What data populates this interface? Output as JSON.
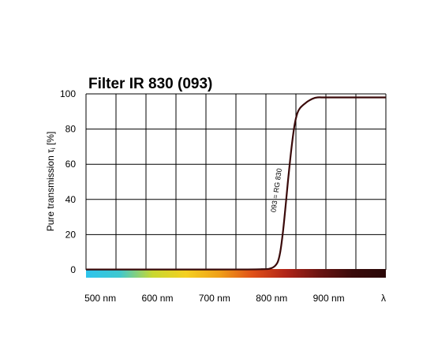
{
  "chart_data": {
    "type": "line",
    "title": "Filter IR 830 (093)",
    "ylabel": "Pure transmission τ",
    "ylabel_sub": "i",
    "ylabel_unit": " [%]",
    "xlabel": "λ",
    "xlim": [
      475,
      1000
    ],
    "ylim": [
      0,
      100
    ],
    "grid": true,
    "y_ticks": [
      "0",
      "20",
      "40",
      "60",
      "80",
      "100"
    ],
    "x_ticks": [
      {
        "value": 500,
        "label": "500 nm"
      },
      {
        "value": 600,
        "label": "600 nm"
      },
      {
        "value": 700,
        "label": "700 nm"
      },
      {
        "value": 800,
        "label": "800 nm"
      },
      {
        "value": 900,
        "label": "900 nm"
      }
    ],
    "annotation": "093 = RG 830",
    "spectrum_colors": [
      "#2ec4ec",
      "#3ec8d0",
      "#c8d830",
      "#f4d020",
      "#f0a018",
      "#e05018",
      "#b02418",
      "#6a1412",
      "#3a0b0b",
      "#2a0808"
    ],
    "line_color": "#3a0a0a",
    "series": [
      {
        "x": [
          475,
          700,
          780,
          800,
          810,
          815,
          820,
          825,
          830,
          835,
          840,
          845,
          850,
          860,
          870,
          880,
          900,
          1000
        ],
        "y": [
          0.2,
          0.2,
          0.3,
          1,
          4,
          10,
          22,
          38,
          55,
          70,
          82,
          89,
          92,
          95,
          97,
          98,
          98,
          98
        ]
      }
    ]
  }
}
